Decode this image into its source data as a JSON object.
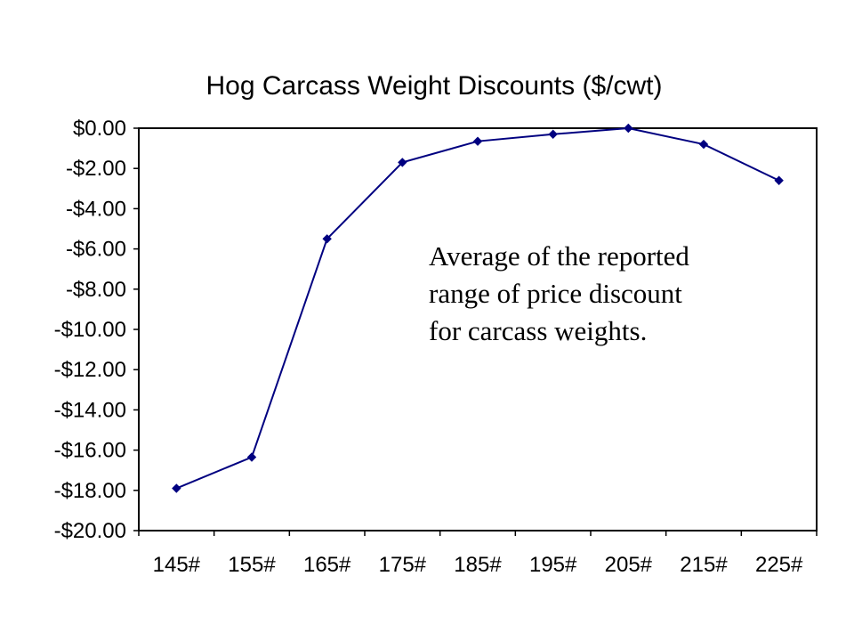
{
  "chart_data": {
    "type": "line",
    "title": "Hog Carcass Weight Discounts ($/cwt)",
    "xlabel": "",
    "ylabel": "",
    "categories": [
      "145#",
      "155#",
      "165#",
      "175#",
      "185#",
      "195#",
      "205#",
      "215#",
      "225#"
    ],
    "series": [
      {
        "values": [
          -17.9,
          -16.35,
          -5.5,
          -1.7,
          -0.65,
          -0.3,
          0.0,
          -0.8,
          -2.6
        ]
      }
    ],
    "ylim": [
      -20,
      0
    ],
    "yticks": [
      0,
      -2,
      -4,
      -6,
      -8,
      -10,
      -12,
      -14,
      -16,
      -18,
      -20
    ],
    "ytick_labels": [
      "$0.00",
      "-$2.00",
      "-$4.00",
      "-$6.00",
      "-$8.00",
      "-$10.00",
      "-$12.00",
      "-$14.00",
      "-$16.00",
      "-$18.00",
      "-$20.00"
    ],
    "grid": false,
    "legend": "none",
    "line_color": "#000080",
    "annotation": [
      "Average of the reported",
      "range of price discount",
      "for carcass weights."
    ]
  }
}
